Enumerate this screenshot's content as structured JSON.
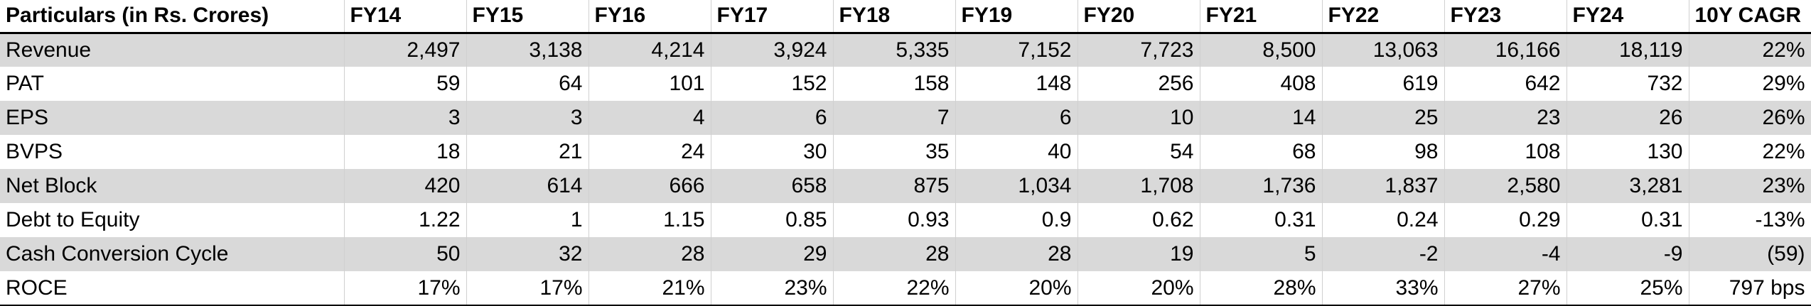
{
  "table": {
    "header": [
      "Particulars (in Rs. Crores)",
      "FY14",
      "FY15",
      "FY16",
      "FY17",
      "FY18",
      "FY19",
      "FY20",
      "FY21",
      "FY22",
      "FY23",
      "FY24",
      "10Y CAGR"
    ],
    "rows": [
      [
        "Revenue",
        "2,497",
        "3,138",
        "4,214",
        "3,924",
        "5,335",
        "7,152",
        "7,723",
        "8,500",
        "13,063",
        "16,166",
        "18,119",
        "22%"
      ],
      [
        "PAT",
        "59",
        "64",
        "101",
        "152",
        "158",
        "148",
        "256",
        "408",
        "619",
        "642",
        "732",
        "29%"
      ],
      [
        "EPS",
        "3",
        "3",
        "4",
        "6",
        "7",
        "6",
        "10",
        "14",
        "25",
        "23",
        "26",
        "26%"
      ],
      [
        "BVPS",
        "18",
        "21",
        "24",
        "30",
        "35",
        "40",
        "54",
        "68",
        "98",
        "108",
        "130",
        "22%"
      ],
      [
        "Net Block",
        "420",
        "614",
        "666",
        "658",
        "875",
        "1,034",
        "1,708",
        "1,736",
        "1,837",
        "2,580",
        "3,281",
        "23%"
      ],
      [
        "Debt to Equity",
        "1.22",
        "1",
        "1.15",
        "0.85",
        "0.93",
        "0.9",
        "0.62",
        "0.31",
        "0.24",
        "0.29",
        "0.31",
        "-13%"
      ],
      [
        "Cash Conversion Cycle",
        "50",
        "32",
        "28",
        "29",
        "28",
        "28",
        "19",
        "5",
        "-2",
        "-4",
        "-9",
        "(59)"
      ],
      [
        "ROCE",
        "17%",
        "17%",
        "21%",
        "23%",
        "22%",
        "20%",
        "20%",
        "28%",
        "33%",
        "27%",
        "25%",
        "797 bps"
      ]
    ]
  }
}
